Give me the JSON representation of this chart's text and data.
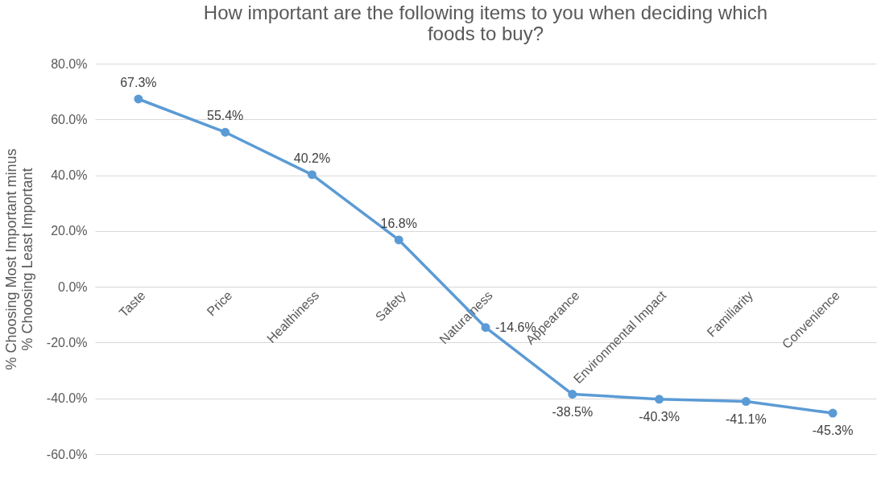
{
  "chart_data": {
    "type": "line",
    "title": "How important are the following items to you when deciding which foods to buy?",
    "ylabel": "% Choosing Most Important minus % Choosing Least Important",
    "categories": [
      "Taste",
      "Price",
      "Healthiness",
      "Safety",
      "Naturalness",
      "Appearance",
      "Environmental Impact",
      "Familiarity",
      "Convenience"
    ],
    "series": [
      {
        "color": "#5b9bd5",
        "values": [
          67.3,
          55.4,
          40.2,
          16.8,
          -14.6,
          -38.5,
          -40.3,
          -41.1,
          -45.3
        ],
        "value_labels": [
          "67.3%",
          "55.4%",
          "40.2%",
          "16.8%",
          "-14.6%",
          "-38.5%",
          "-40.3%",
          "-41.1%",
          "-45.3%"
        ]
      }
    ],
    "ylim": [
      -60,
      80
    ],
    "yticks": [
      {
        "value": -60,
        "label": "-60.0%"
      },
      {
        "value": -40,
        "label": "-40.0%"
      },
      {
        "value": -20,
        "label": "-20.0%"
      },
      {
        "value": 0,
        "label": "0.0%"
      },
      {
        "value": 20,
        "label": "20.0%"
      },
      {
        "value": 40,
        "label": "40.0%"
      },
      {
        "value": 60,
        "label": "60.0%"
      },
      {
        "value": 80,
        "label": "80.0%"
      }
    ],
    "grid": "y",
    "marker": "circle",
    "legend": false
  }
}
